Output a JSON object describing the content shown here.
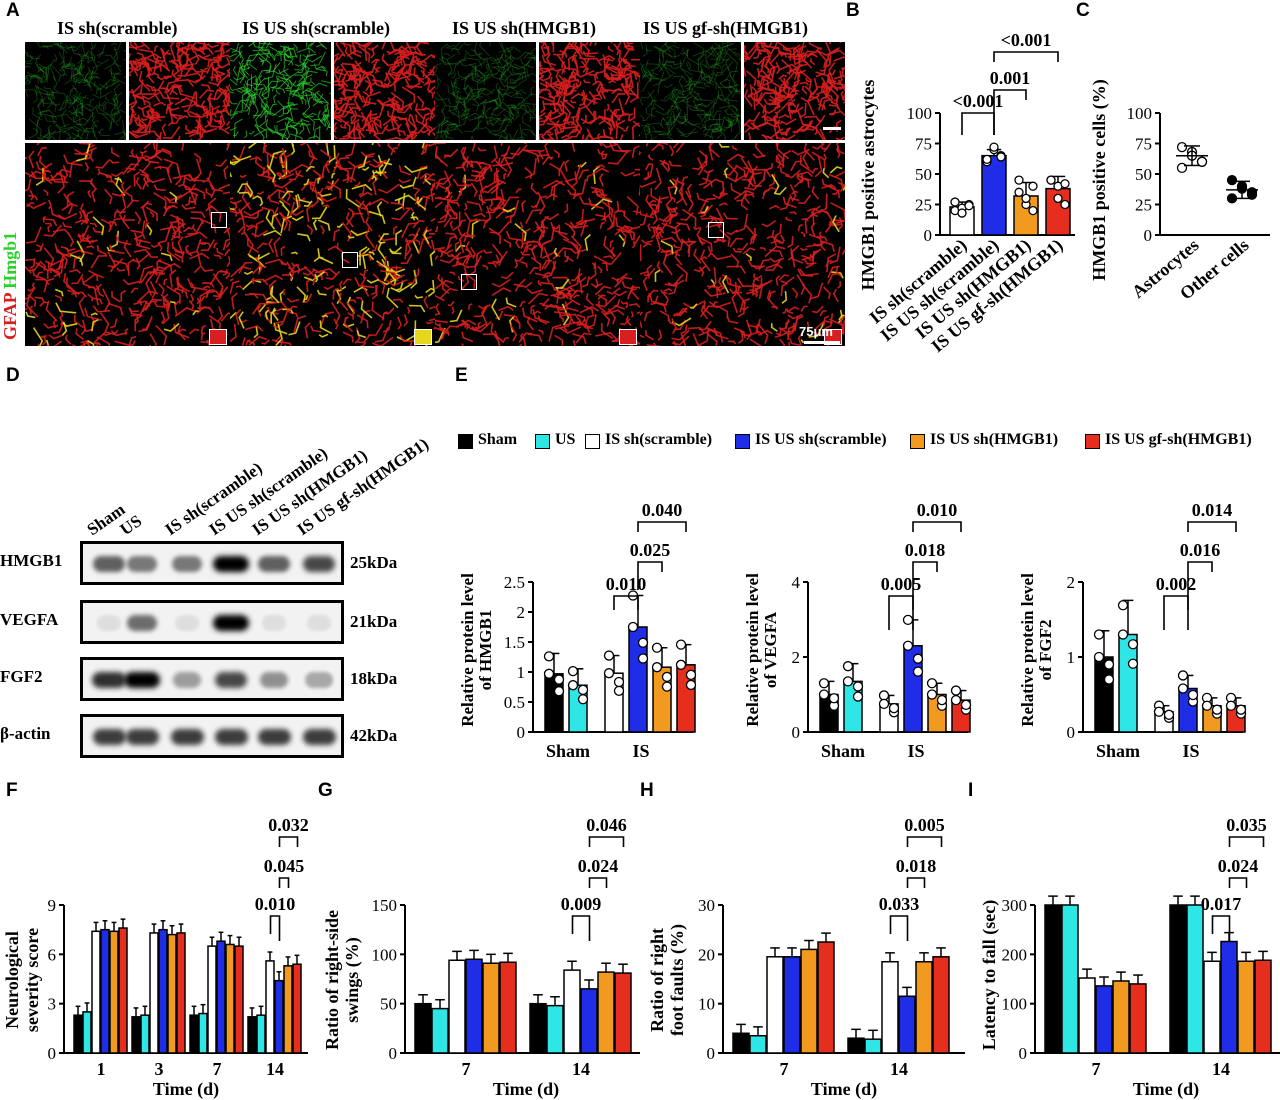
{
  "panels": {
    "A": "A",
    "B": "B",
    "C": "C",
    "D": "D",
    "E": "E",
    "F": "F",
    "G": "G",
    "H": "H",
    "I": "I"
  },
  "panelA": {
    "columns": [
      "IS sh(scramble)",
      "IS US sh(scramble)",
      "IS US sh(HMGB1)",
      "IS US gf-sh(HMGB1)"
    ],
    "ylabel_red": "GFAP",
    "ylabel_green": "Hmgb1",
    "scale_bar": "75μm",
    "colors": {
      "red": "#d81e1e",
      "green": "#2bd12b",
      "yellow": "#e6d61c",
      "black": "#000000"
    }
  },
  "legend": {
    "items": [
      {
        "label": "Sham",
        "color": "#000000"
      },
      {
        "label": "US",
        "color": "#2ee6e6"
      },
      {
        "label": "IS sh(scramble)",
        "color": "#ffffff"
      },
      {
        "label": "IS US sh(scramble)",
        "color": "#1f2ee6"
      },
      {
        "label": "IS US sh(HMGB1)",
        "color": "#f29a1f"
      },
      {
        "label": "IS US gf-sh(HMGB1)",
        "color": "#e62e1f"
      }
    ]
  },
  "blot": {
    "lanes": [
      "Sham",
      "US",
      "IS sh(scramble)",
      "IS US sh(scramble)",
      "IS US sh(HMGB1)",
      "IS US gf-sh(HMGB1)"
    ],
    "rows": [
      {
        "name": "HMGB1",
        "kda": "25kDa",
        "intensity": [
          0.6,
          0.5,
          0.5,
          1.0,
          0.6,
          0.7
        ]
      },
      {
        "name": "VEGFA",
        "kda": "21kDa",
        "intensity": [
          0.05,
          0.55,
          0.05,
          1.0,
          0.05,
          0.05
        ]
      },
      {
        "name": "FGF2",
        "kda": "18kDa",
        "intensity": [
          0.8,
          1.0,
          0.35,
          0.7,
          0.4,
          0.3
        ]
      },
      {
        "name": "β-actin",
        "kda": "42kDa",
        "intensity": [
          0.75,
          0.75,
          0.75,
          0.75,
          0.75,
          0.75
        ]
      }
    ]
  },
  "chart_data": [
    {
      "id": "B",
      "type": "bar",
      "ylabel": "HMGB1 positive astrocytes",
      "yticks": [
        "0",
        "25",
        "50",
        "75",
        "100"
      ],
      "ylim": [
        0,
        100
      ],
      "categories": [
        "IS sh(scramble)",
        "IS US sh(scramble)",
        "IS US sh(HMGB1)",
        "IS US gf-sh(HMGB1)"
      ],
      "values": [
        23,
        65,
        32,
        38
      ],
      "errors": [
        4,
        5,
        11,
        10
      ],
      "comparisons": [
        "<0.001",
        "0.001",
        "<0.001"
      ]
    },
    {
      "id": "C",
      "type": "scatter",
      "ylabel": "HMGB1 positive cells (%)",
      "yticks": [
        "0",
        "25",
        "50",
        "75",
        "100"
      ],
      "ylim": [
        0,
        100
      ],
      "categories": [
        "Astrocytes",
        "Other cells"
      ],
      "values": [
        65,
        37
      ],
      "errors": [
        8,
        7
      ]
    },
    {
      "id": "E1",
      "type": "bar",
      "ylabel": "Relative protein level of HMGB1",
      "yticks": [
        "0",
        "0.5",
        "1",
        "1.5",
        "2",
        "2.5"
      ],
      "ylim": [
        0,
        2.5
      ],
      "groups": [
        "Sham",
        "IS"
      ],
      "series_values": [
        [
          0.97,
          0.78
        ],
        [
          0.98,
          1.75,
          1.08,
          1.12
        ]
      ],
      "comparisons": [
        "0.010",
        "0.025",
        "0.040"
      ]
    },
    {
      "id": "E2",
      "type": "bar",
      "ylabel": "Relative protein level of VEGFA",
      "yticks": [
        "0",
        "2",
        "4"
      ],
      "ylim": [
        0,
        4
      ],
      "groups": [
        "Sham",
        "IS"
      ],
      "series_values": [
        [
          1.0,
          1.35
        ],
        [
          0.75,
          2.3,
          1.0,
          0.85
        ]
      ],
      "comparisons": [
        "0.005",
        "0.018",
        "0.010"
      ]
    },
    {
      "id": "E3",
      "type": "bar",
      "ylabel": "Relative protein level of FGF2",
      "yticks": [
        "0",
        "1",
        "2"
      ],
      "ylim": [
        0,
        2
      ],
      "groups": [
        "Sham",
        "IS"
      ],
      "series_values": [
        [
          1.0,
          1.3
        ],
        [
          0.27,
          0.58,
          0.35,
          0.35
        ]
      ],
      "comparisons": [
        "0.002",
        "0.016",
        "0.014"
      ]
    },
    {
      "id": "F",
      "type": "bar",
      "ylabel": "Neurological severity score",
      "xlabel": "Time (d)",
      "yticks": [
        "0",
        "3",
        "6",
        "9"
      ],
      "ylim": [
        0,
        9
      ],
      "groups": [
        "1",
        "3",
        "7",
        "14"
      ],
      "series_values": [
        [
          2.3,
          2.5,
          7.4,
          7.5,
          7.4,
          7.6
        ],
        [
          2.2,
          2.3,
          7.3,
          7.5,
          7.2,
          7.3
        ],
        [
          2.3,
          2.4,
          6.5,
          6.8,
          6.6,
          6.5
        ],
        [
          2.2,
          2.3,
          5.6,
          4.4,
          5.3,
          5.4
        ]
      ],
      "comparisons": [
        "0.010",
        "0.045",
        "0.032"
      ]
    },
    {
      "id": "G",
      "type": "bar",
      "ylabel": "Ratio of right-side swings (%)",
      "xlabel": "Time (d)",
      "yticks": [
        "0",
        "50",
        "100",
        "150"
      ],
      "ylim": [
        0,
        150
      ],
      "groups": [
        "7",
        "14"
      ],
      "series_values": [
        [
          50,
          45,
          94,
          95,
          91,
          92
        ],
        [
          50,
          48,
          84,
          65,
          82,
          81
        ]
      ],
      "comparisons": [
        "0.009",
        "0.024",
        "0.046"
      ]
    },
    {
      "id": "H",
      "type": "bar",
      "ylabel": "Ratio of right foot faults (%)",
      "xlabel": "Time (d)",
      "yticks": [
        "0",
        "10",
        "20",
        "30"
      ],
      "ylim": [
        0,
        30
      ],
      "groups": [
        "7",
        "14"
      ],
      "series_values": [
        [
          4,
          3.5,
          19.5,
          19.5,
          21,
          22.5
        ],
        [
          3,
          2.8,
          18.5,
          11.5,
          18.5,
          19.5
        ]
      ],
      "comparisons": [
        "0.033",
        "0.018",
        "0.005"
      ]
    },
    {
      "id": "I",
      "type": "bar",
      "ylabel": "Latency to fall (sec)",
      "xlabel": "Time (d)",
      "yticks": [
        "0",
        "100",
        "200",
        "300"
      ],
      "ylim": [
        0,
        300
      ],
      "groups": [
        "7",
        "14"
      ],
      "series_values": [
        [
          300,
          300,
          152,
          136,
          146,
          140
        ],
        [
          300,
          300,
          186,
          226,
          186,
          188
        ]
      ],
      "comparisons": [
        "0.017",
        "0.024",
        "0.035"
      ]
    }
  ]
}
